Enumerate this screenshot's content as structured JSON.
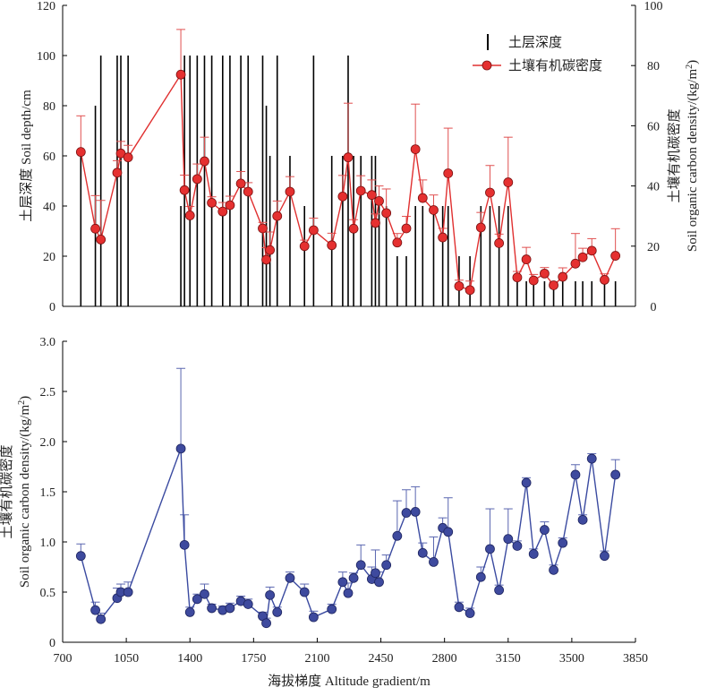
{
  "chart_data": [
    {
      "type": "bar+line",
      "panel": "top",
      "x": [
        800,
        880,
        910,
        1000,
        1020,
        1060,
        1350,
        1370,
        1400,
        1440,
        1480,
        1520,
        1580,
        1620,
        1680,
        1720,
        1800,
        1820,
        1840,
        1880,
        1950,
        2030,
        2080,
        2180,
        2240,
        2270,
        2300,
        2340,
        2400,
        2420,
        2440,
        2480,
        2540,
        2590,
        2640,
        2680,
        2740,
        2790,
        2820,
        2880,
        2940,
        3000,
        3050,
        3100,
        3150,
        3200,
        3250,
        3290,
        3350,
        3400,
        3450,
        3520,
        3560,
        3610,
        3680,
        3740
      ],
      "depth_series": {
        "name": "土层深度",
        "values": [
          60,
          80,
          100,
          100,
          100,
          100,
          40,
          100,
          100,
          100,
          100,
          100,
          100,
          100,
          100,
          100,
          100,
          80,
          60,
          100,
          60,
          40,
          100,
          60,
          60,
          100,
          60,
          60,
          60,
          60,
          40,
          40,
          20,
          20,
          40,
          40,
          40,
          40,
          40,
          20,
          20,
          40,
          40,
          40,
          40,
          10,
          10,
          10,
          10,
          10,
          10,
          10,
          10,
          10,
          10,
          10
        ]
      },
      "density_series": {
        "name": "土壤有机碳密度",
        "values": [
          51.3,
          25.8,
          22.2,
          44.4,
          50.8,
          49.5,
          77.0,
          38.6,
          30.2,
          42.3,
          48.2,
          34.4,
          31.5,
          33.6,
          40.8,
          38.1,
          25.9,
          15.5,
          18.7,
          30.0,
          38.1,
          20.0,
          25.3,
          20.3,
          36.5,
          49.5,
          25.8,
          38.4,
          37.0,
          27.7,
          35.0,
          31.0,
          21.2,
          25.9,
          52.2,
          36.0,
          32.0,
          22.9,
          44.2,
          6.7,
          5.4,
          26.2,
          37.8,
          21.0,
          41.2,
          9.6,
          15.6,
          8.6,
          10.9,
          7.0,
          9.8,
          14.2,
          16.3,
          18.5,
          8.8,
          16.8
        ]
      },
      "density_error": [
        12,
        11,
        13,
        4,
        4,
        4,
        15,
        5,
        3,
        5,
        8,
        2,
        3,
        3,
        4,
        3,
        2,
        4,
        6,
        5,
        5,
        2,
        4,
        4,
        7,
        18,
        3,
        5,
        5,
        3,
        5,
        8,
        3,
        4,
        15,
        6,
        5,
        3,
        15,
        2,
        3,
        5,
        9,
        3,
        15,
        2,
        4,
        2,
        2,
        1,
        3,
        10,
        3,
        4,
        2,
        9
      ],
      "xlim": [
        700,
        3850
      ],
      "ylim_left": [
        0,
        120
      ],
      "ylim_right": [
        0,
        100
      ],
      "ylabel_left": "土层深度 Soil depth/cm",
      "ylabel_right_cn": "土壤有机碳密度",
      "ylabel_right_en": "Soil organic carbon density/(kg/m",
      "left_ticks": [
        "0",
        "20",
        "40",
        "60",
        "80",
        "100",
        "120"
      ],
      "right_ticks": [
        "0",
        "20",
        "40",
        "60",
        "80",
        "100"
      ],
      "legend_position": "top-right",
      "colors": {
        "bar": "#000000",
        "line": "#e03030",
        "marker": "#e53030"
      }
    },
    {
      "type": "line",
      "panel": "bottom",
      "x": [
        800,
        880,
        910,
        1000,
        1020,
        1060,
        1350,
        1370,
        1400,
        1440,
        1480,
        1520,
        1580,
        1620,
        1680,
        1720,
        1800,
        1820,
        1840,
        1880,
        1950,
        2030,
        2080,
        2180,
        2240,
        2270,
        2300,
        2340,
        2400,
        2420,
        2440,
        2480,
        2540,
        2590,
        2640,
        2680,
        2740,
        2790,
        2820,
        2880,
        2940,
        3000,
        3050,
        3100,
        3150,
        3200,
        3250,
        3290,
        3350,
        3400,
        3450,
        3520,
        3560,
        3610,
        3680,
        3740
      ],
      "series": [
        {
          "values": [
            0.86,
            0.32,
            0.23,
            0.44,
            0.5,
            0.5,
            1.93,
            0.97,
            0.3,
            0.43,
            0.48,
            0.34,
            0.32,
            0.34,
            0.41,
            0.38,
            0.26,
            0.19,
            0.47,
            0.3,
            0.64,
            0.5,
            0.25,
            0.33,
            0.6,
            0.49,
            0.64,
            0.77,
            0.63,
            0.69,
            0.6,
            0.77,
            1.06,
            1.29,
            1.3,
            0.89,
            0.8,
            1.14,
            1.1,
            0.35,
            0.29,
            0.65,
            0.93,
            0.52,
            1.03,
            0.96,
            1.59,
            0.88,
            1.12,
            0.72,
            0.99,
            1.67,
            1.22,
            1.83,
            0.86,
            1.67
          ],
          "error": [
            0.12,
            0.08,
            0.06,
            0.1,
            0.08,
            0.1,
            0.8,
            0.3,
            0.05,
            0.05,
            0.1,
            0.04,
            0.04,
            0.05,
            0.05,
            0.05,
            0.04,
            0.05,
            0.08,
            0.05,
            0.06,
            0.08,
            0.06,
            0.05,
            0.1,
            0.1,
            0.05,
            0.2,
            0.12,
            0.23,
            0.1,
            0.1,
            0.35,
            0.23,
            0.25,
            0.1,
            0.25,
            0.1,
            0.34,
            0.05,
            0.05,
            0.1,
            0.4,
            0.05,
            0.3,
            0.05,
            0.05,
            0.05,
            0.08,
            0.05,
            0.05,
            0.1,
            0.05,
            0.05,
            0.05,
            0.15
          ]
        }
      ],
      "xlim": [
        700,
        3850
      ],
      "ylim": [
        0,
        3.0
      ],
      "x_ticks": [
        "700",
        "1050",
        "1400",
        "1750",
        "2100",
        "2450",
        "2800",
        "3150",
        "3500",
        "3850"
      ],
      "y_ticks": [
        "0",
        "0.5",
        "1.0",
        "1.5",
        "2.0",
        "2.5",
        "3.0"
      ],
      "ylabel_cn": "土壤有机碳密度",
      "ylabel_en": "Soil organic carbon density/(kg/m",
      "xlabel": "海拔梯度 Altitude gradient/m",
      "colors": {
        "line": "#3a4aa0",
        "marker": "#3e4a9e"
      }
    }
  ],
  "legend": {
    "depth_label": "土层深度",
    "density_label": "土壤有机碳密度"
  },
  "superscript": "2",
  "unit_close": ")"
}
